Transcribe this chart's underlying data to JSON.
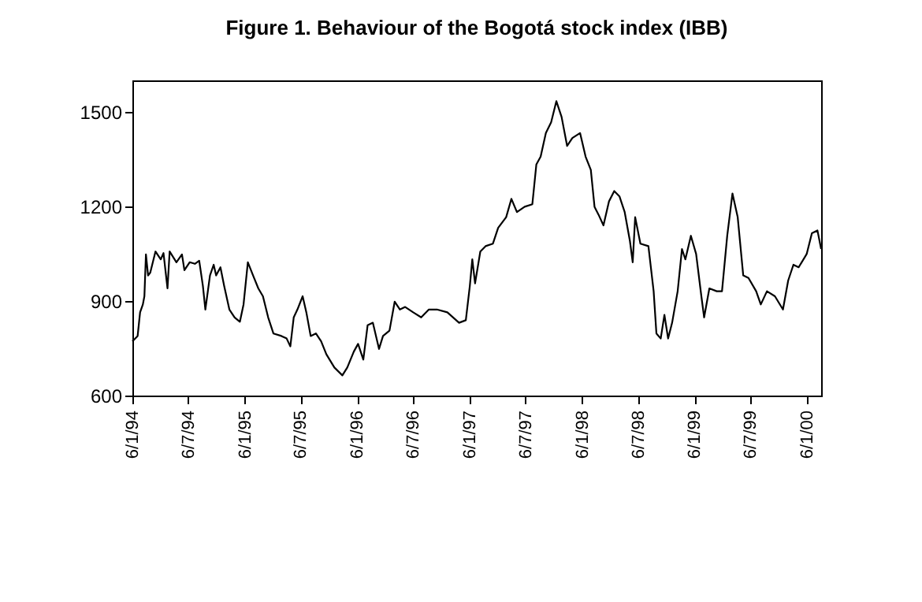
{
  "chart_data": {
    "type": "line",
    "title": "Figure 1. Behaviour of the Bogotá stock index (IBB)",
    "xlim": [
      "1994-01-06",
      "2000-02-21"
    ],
    "ylim": [
      600,
      1600
    ],
    "yticks": [
      600,
      900,
      1200,
      1500
    ],
    "xticks": [
      {
        "value": "1994-01-06",
        "label": "6/1/94"
      },
      {
        "value": "1994-07-06",
        "label": "6/7/94"
      },
      {
        "value": "1995-01-06",
        "label": "6/1/95"
      },
      {
        "value": "1995-07-06",
        "label": "6/7/95"
      },
      {
        "value": "1996-01-06",
        "label": "6/1/96"
      },
      {
        "value": "1996-07-06",
        "label": "6/7/96"
      },
      {
        "value": "1997-01-06",
        "label": "6/1/97"
      },
      {
        "value": "1997-07-06",
        "label": "6/7/97"
      },
      {
        "value": "1998-01-06",
        "label": "6/1/98"
      },
      {
        "value": "1998-07-06",
        "label": "6/7/98"
      },
      {
        "value": "1999-01-06",
        "label": "6/1/99"
      },
      {
        "value": "1999-07-06",
        "label": "6/7/99"
      },
      {
        "value": "2000-01-06",
        "label": "6/1/00"
      }
    ],
    "grid": false,
    "legend": false,
    "marker": "none",
    "line_style": "solid",
    "x": [
      "1994-01-06",
      "1994-01-23",
      "1994-01-31",
      "1994-02-09",
      "1994-02-14",
      "1994-02-19",
      "1994-02-26",
      "1994-03-05",
      "1994-03-22",
      "1994-04-08",
      "1994-04-17",
      "1994-04-30",
      "1994-05-07",
      "1994-05-29",
      "1994-06-16",
      "1994-06-24",
      "1994-07-11",
      "1994-07-28",
      "1994-08-11",
      "1994-08-23",
      "1994-08-31",
      "1994-09-15",
      "1994-09-27",
      "1994-10-05",
      "1994-10-19",
      "1994-10-31",
      "1994-11-17",
      "1994-12-04",
      "1994-12-21",
      "1995-01-02",
      "1995-01-16",
      "1995-02-02",
      "1995-02-19",
      "1995-03-06",
      "1995-03-23",
      "1995-04-09",
      "1995-05-05",
      "1995-05-22",
      "1995-06-03",
      "1995-06-14",
      "1995-06-26",
      "1995-07-13",
      "1995-07-25",
      "1995-08-08",
      "1995-08-25",
      "1995-09-11",
      "1995-09-28",
      "1995-10-24",
      "1995-11-19",
      "1995-12-05",
      "1995-12-26",
      "1996-01-09",
      "1996-01-26",
      "1996-02-09",
      "1996-02-26",
      "1996-03-17",
      "1996-03-30",
      "1996-04-20",
      "1996-05-07",
      "1996-05-24",
      "1996-06-10",
      "1996-07-06",
      "1996-08-01",
      "1996-08-26",
      "1996-09-21",
      "1996-10-25",
      "1996-12-02",
      "1996-12-24",
      "1997-01-06",
      "1997-01-14",
      "1997-01-23",
      "1997-02-09",
      "1997-02-26",
      "1997-03-22",
      "1997-04-08",
      "1997-05-04",
      "1997-05-21",
      "1997-06-08",
      "1997-07-03",
      "1997-07-28",
      "1997-08-10",
      "1997-08-24",
      "1997-09-10",
      "1997-09-27",
      "1997-10-14",
      "1997-10-31",
      "1997-11-18",
      "1997-12-05",
      "1997-12-30",
      "1998-01-17",
      "1998-02-03",
      "1998-02-15",
      "1998-02-28",
      "1998-03-16",
      "1998-04-03",
      "1998-04-20",
      "1998-05-07",
      "1998-05-24",
      "1998-06-10",
      "1998-06-19",
      "1998-06-27",
      "1998-07-14",
      "1998-08-09",
      "1998-08-26",
      "1998-09-04",
      "1998-09-18",
      "1998-09-30",
      "1998-10-12",
      "1998-10-25",
      "1998-11-12",
      "1998-11-26",
      "1998-12-07",
      "1998-12-25",
      "1999-01-11",
      "1999-01-28",
      "1999-02-06",
      "1999-02-23",
      "1999-03-19",
      "1999-04-05",
      "1999-04-22",
      "1999-05-09",
      "1999-05-26",
      "1999-06-13",
      "1999-06-30",
      "1999-07-25",
      "1999-08-09",
      "1999-08-29",
      "1999-09-24",
      "1999-10-20",
      "1999-11-06",
      "1999-11-23",
      "1999-12-10",
      "2000-01-05",
      "2000-01-22",
      "2000-02-09",
      "2000-02-21"
    ],
    "series": [
      {
        "color": "#000000",
        "values": [
          772,
          789,
          864,
          889,
          915,
          1048,
          981,
          990,
          1057,
          1032,
          1052,
          940,
          1057,
          1023,
          1048,
          998,
          1023,
          1018,
          1028,
          948,
          873,
          981,
          1015,
          981,
          1007,
          948,
          873,
          848,
          834,
          889,
          1023,
          981,
          940,
          915,
          848,
          797,
          789,
          781,
          756,
          848,
          873,
          915,
          864,
          789,
          797,
          772,
          731,
          689,
          664,
          689,
          739,
          764,
          714,
          823,
          831,
          748,
          789,
          806,
          898,
          873,
          881,
          864,
          848,
          873,
          873,
          864,
          831,
          839,
          948,
          1032,
          956,
          1057,
          1074,
          1082,
          1132,
          1166,
          1224,
          1182,
          1199,
          1207,
          1333,
          1358,
          1433,
          1467,
          1534,
          1484,
          1392,
          1417,
          1433,
          1358,
          1316,
          1199,
          1174,
          1140,
          1216,
          1249,
          1232,
          1182,
          1090,
          1023,
          1166,
          1082,
          1074,
          931,
          797,
          781,
          856,
          781,
          831,
          931,
          1065,
          1032,
          1107,
          1049,
          915,
          848,
          940,
          931,
          931,
          1107,
          1241,
          1166,
          981,
          973,
          931,
          889,
          931,
          915,
          873,
          965,
          1015,
          1007,
          1049,
          1115,
          1124,
          1065
        ]
      }
    ]
  }
}
